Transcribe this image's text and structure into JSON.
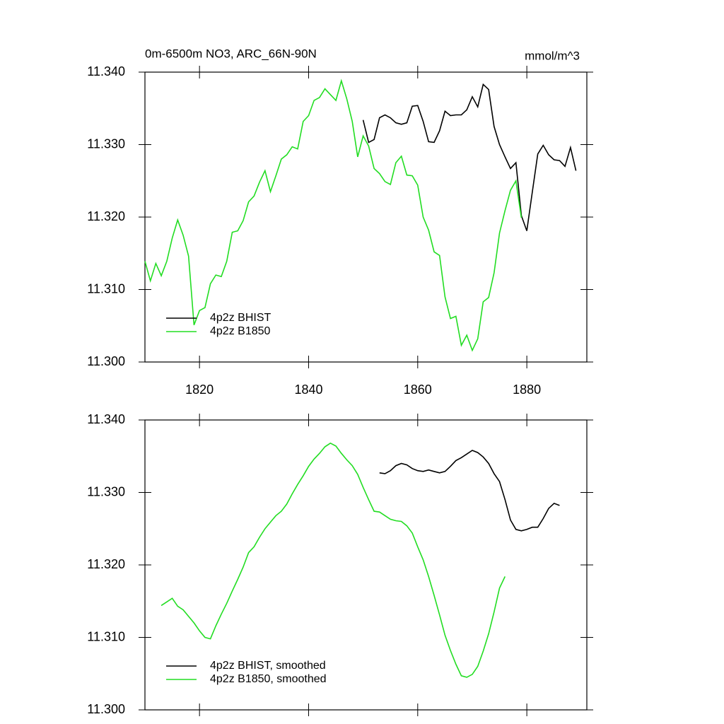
{
  "chart_data": [
    {
      "type": "line",
      "title": "0m-6500m NO3, ARC_66N-90N",
      "units": "mmol/m^3",
      "xlim": [
        1810,
        1891
      ],
      "xticks": [
        1820,
        1840,
        1860,
        1880
      ],
      "xtick_labels": true,
      "ylim": [
        11.3,
        11.34
      ],
      "yticks": [
        {
          "value": 11.3,
          "label": "11.300"
        },
        {
          "value": 11.31,
          "label": "11.310"
        },
        {
          "value": 11.32,
          "label": "11.320"
        },
        {
          "value": 11.33,
          "label": "11.330"
        },
        {
          "value": 11.34,
          "label": "11.340"
        }
      ],
      "legend": "lower left",
      "series": [
        {
          "name": "4p2z BHIST",
          "color": "#000000",
          "x": [
            1850,
            1851,
            1852,
            1853,
            1854,
            1855,
            1856,
            1857,
            1858,
            1859,
            1860,
            1861,
            1862,
            1863,
            1864,
            1865,
            1866,
            1867,
            1868,
            1869,
            1870,
            1871,
            1872,
            1873,
            1874,
            1875,
            1876,
            1877,
            1878,
            1879,
            1880,
            1881,
            1882,
            1883,
            1884,
            1885,
            1886,
            1887,
            1888,
            1889
          ],
          "values": [
            11.3334,
            11.3303,
            11.3307,
            11.3337,
            11.3341,
            11.3337,
            11.333,
            11.3328,
            11.333,
            11.3353,
            11.3354,
            11.3332,
            11.3304,
            11.3303,
            11.3319,
            11.3346,
            11.334,
            11.3341,
            11.3341,
            11.3348,
            11.3366,
            11.3352,
            11.3383,
            11.3376,
            11.3325,
            11.33,
            11.3283,
            11.3267,
            11.3275,
            11.3202,
            11.3181,
            11.3234,
            11.3287,
            11.3299,
            11.3286,
            11.3279,
            11.3278,
            11.327,
            11.3296,
            11.3264
          ]
        },
        {
          "name": "4p2z B1850",
          "color": "#22dd22",
          "x": [
            1810,
            1811,
            1812,
            1813,
            1814,
            1815,
            1816,
            1817,
            1818,
            1819,
            1820,
            1821,
            1822,
            1823,
            1824,
            1825,
            1826,
            1827,
            1828,
            1829,
            1830,
            1831,
            1832,
            1833,
            1834,
            1835,
            1836,
            1837,
            1838,
            1839,
            1840,
            1841,
            1842,
            1843,
            1844,
            1845,
            1846,
            1847,
            1848,
            1849,
            1850,
            1851,
            1852,
            1853,
            1854,
            1855,
            1856,
            1857,
            1858,
            1859,
            1860,
            1861,
            1862,
            1863,
            1864,
            1865,
            1866,
            1867,
            1868,
            1869,
            1870,
            1871,
            1872,
            1873,
            1874,
            1875,
            1876,
            1877,
            1878,
            1879
          ],
          "values": [
            11.3139,
            11.3112,
            11.3136,
            11.3119,
            11.3139,
            11.3171,
            11.3196,
            11.3175,
            11.3146,
            11.3051,
            11.3071,
            11.3075,
            11.3108,
            11.312,
            11.3118,
            11.3139,
            11.3179,
            11.3181,
            11.3195,
            11.3221,
            11.3229,
            11.3248,
            11.3264,
            11.3235,
            11.3257,
            11.328,
            11.3286,
            11.3297,
            11.3294,
            11.3332,
            11.334,
            11.3361,
            11.3365,
            11.3377,
            11.3369,
            11.3361,
            11.3388,
            11.3363,
            11.3332,
            11.3283,
            11.3312,
            11.3298,
            11.3267,
            11.326,
            11.3249,
            11.3245,
            11.3275,
            11.3284,
            11.3258,
            11.3257,
            11.3244,
            11.32,
            11.3182,
            11.3152,
            11.3147,
            11.309,
            11.306,
            11.3063,
            11.3023,
            11.3037,
            11.3016,
            11.3032,
            11.3083,
            11.3089,
            11.3123,
            11.3178,
            11.3209,
            11.3237,
            11.325,
            11.3199
          ]
        }
      ]
    },
    {
      "type": "line",
      "xlim": [
        1810,
        1891
      ],
      "xticks": [
        1820,
        1840,
        1860,
        1880
      ],
      "xtick_labels": false,
      "ylim": [
        11.3,
        11.34
      ],
      "yticks": [
        {
          "value": 11.3,
          "label": "11.300"
        },
        {
          "value": 11.31,
          "label": "11.310"
        },
        {
          "value": 11.32,
          "label": "11.320"
        },
        {
          "value": 11.33,
          "label": "11.330"
        },
        {
          "value": 11.34,
          "label": "11.340"
        }
      ],
      "legend": "lower left",
      "series": [
        {
          "name": "4p2z BHIST, smoothed",
          "color": "#000000",
          "x": [
            1853,
            1854,
            1855,
            1856,
            1857,
            1858,
            1859,
            1860,
            1861,
            1862,
            1863,
            1864,
            1865,
            1866,
            1867,
            1868,
            1869,
            1870,
            1871,
            1872,
            1873,
            1874,
            1875,
            1876,
            1877,
            1878,
            1879,
            1880,
            1881,
            1882,
            1883,
            1884,
            1885,
            1886
          ],
          "values": [
            11.3327,
            11.3326,
            11.333,
            11.3337,
            11.334,
            11.3338,
            11.3333,
            11.333,
            11.3329,
            11.3331,
            11.3329,
            11.3327,
            11.3329,
            11.3336,
            11.3344,
            11.3348,
            11.3353,
            11.3358,
            11.3355,
            11.3349,
            11.334,
            11.3326,
            11.3315,
            11.329,
            11.3262,
            11.3249,
            11.3247,
            11.3249,
            11.3252,
            11.3252,
            11.3264,
            11.3278,
            11.3285,
            11.3282
          ]
        },
        {
          "name": "4p2z B1850, smoothed",
          "color": "#22dd22",
          "x": [
            1813,
            1814,
            1815,
            1816,
            1817,
            1818,
            1819,
            1820,
            1821,
            1822,
            1823,
            1824,
            1825,
            1826,
            1827,
            1828,
            1829,
            1830,
            1831,
            1832,
            1833,
            1834,
            1835,
            1836,
            1837,
            1838,
            1839,
            1840,
            1841,
            1842,
            1843,
            1844,
            1845,
            1846,
            1847,
            1848,
            1849,
            1850,
            1851,
            1852,
            1853,
            1854,
            1855,
            1856,
            1857,
            1858,
            1859,
            1860,
            1861,
            1862,
            1863,
            1864,
            1865,
            1866,
            1867,
            1868,
            1869,
            1870,
            1871,
            1872,
            1873,
            1874,
            1875,
            1876
          ],
          "values": [
            11.3144,
            11.3149,
            11.3154,
            11.3143,
            11.3138,
            11.3129,
            11.312,
            11.3109,
            11.31,
            11.3098,
            11.3116,
            11.3132,
            11.3147,
            11.3164,
            11.318,
            11.3197,
            11.3217,
            11.3225,
            11.3238,
            11.325,
            11.3259,
            11.3268,
            11.3274,
            11.3284,
            11.3298,
            11.3311,
            11.3323,
            11.3336,
            11.3346,
            11.3354,
            11.3363,
            11.3368,
            11.3364,
            11.3354,
            11.3345,
            11.3337,
            11.3325,
            11.3307,
            11.329,
            11.3274,
            11.3273,
            11.3268,
            11.3263,
            11.3261,
            11.326,
            11.3254,
            11.3244,
            11.3225,
            11.3207,
            11.3184,
            11.3158,
            11.3131,
            11.3103,
            11.3082,
            11.3063,
            11.3047,
            11.3045,
            11.3049,
            11.306,
            11.3081,
            11.3105,
            11.3135,
            11.3168,
            11.3184
          ]
        }
      ]
    }
  ]
}
